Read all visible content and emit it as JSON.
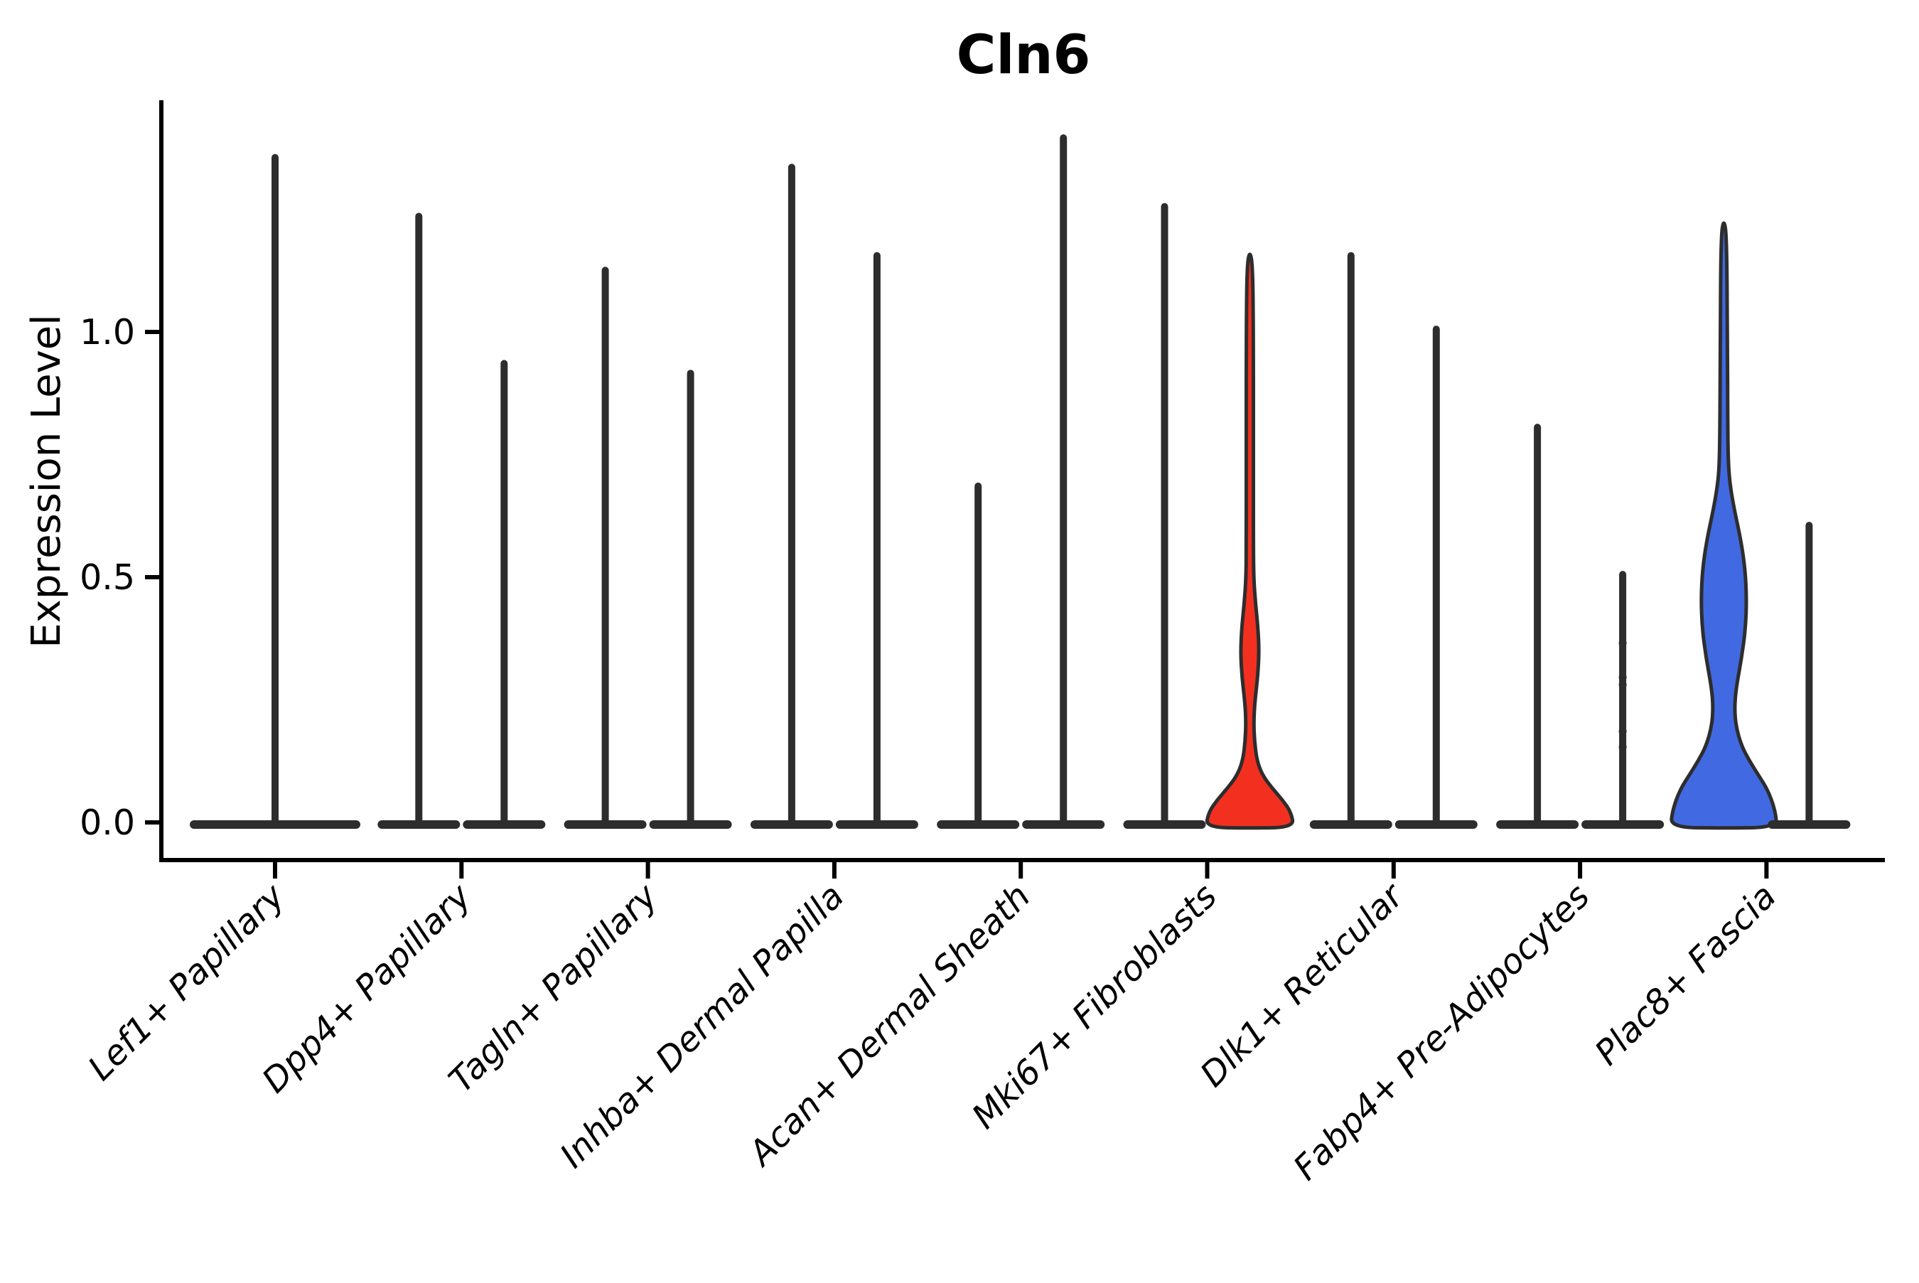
{
  "chart_data": {
    "type": "violin",
    "title": "Cln6",
    "ylabel": "Expression Level",
    "ytick_labels": [
      "0.0",
      "0.5",
      "1.0"
    ],
    "yticks": [
      0.0,
      0.5,
      1.0
    ],
    "ylim": [
      0,
      1.46
    ],
    "grid": false,
    "legend": "none",
    "ink_color": "#2d2d2d",
    "red_fill": "#f3301f",
    "blue_fill": "#4169e1",
    "categories": [
      "Lef1+ Papillary",
      "Dpp4+ Papillary",
      "Tagln+ Papillary",
      "Inhba+ Dermal Papilla",
      "Acan+ Dermal Sheath",
      "Mki67+ Fibroblasts",
      "Dlk1+ Reticular",
      "Fabp4+ Pre-Adipocytes",
      "Plac8+ Fascia"
    ],
    "groups": [
      {
        "category": "Lef1+ Papillary",
        "violins": [
          {
            "pos": "center",
            "max": 1.36,
            "style": "spike"
          }
        ]
      },
      {
        "category": "Dpp4+ Papillary",
        "violins": [
          {
            "pos": "left",
            "max": 1.24,
            "style": "spike"
          },
          {
            "pos": "right",
            "max": 0.94,
            "style": "spike"
          }
        ]
      },
      {
        "category": "Tagln+ Papillary",
        "violins": [
          {
            "pos": "left",
            "max": 1.13,
            "style": "spike"
          },
          {
            "pos": "right",
            "max": 0.92,
            "style": "spike"
          }
        ]
      },
      {
        "category": "Inhba+ Dermal Papilla",
        "violins": [
          {
            "pos": "left",
            "max": 1.34,
            "style": "spike"
          },
          {
            "pos": "right",
            "max": 1.16,
            "style": "spike"
          }
        ]
      },
      {
        "category": "Acan+ Dermal Sheath",
        "violins": [
          {
            "pos": "left",
            "max": 0.69,
            "style": "spike"
          },
          {
            "pos": "right",
            "max": 1.4,
            "style": "spike"
          }
        ]
      },
      {
        "category": "Mki67+ Fibroblasts",
        "violins": [
          {
            "pos": "left",
            "max": 1.26,
            "style": "spike"
          },
          {
            "pos": "right",
            "max": 1.17,
            "style": "body",
            "profile": "red",
            "fill": "#f3301f"
          }
        ]
      },
      {
        "category": "Dlk1+ Reticular",
        "violins": [
          {
            "pos": "left",
            "max": 1.16,
            "style": "spike"
          },
          {
            "pos": "right",
            "max": 1.01,
            "style": "spike"
          }
        ]
      },
      {
        "category": "Fabp4+ Pre-Adipocytes",
        "violins": [
          {
            "pos": "left",
            "max": 0.81,
            "style": "spike"
          },
          {
            "pos": "right",
            "max": 0.51,
            "style": "spike",
            "knots": [
              0.37,
              0.3,
              0.285,
              0.19,
              0.158
            ]
          }
        ]
      },
      {
        "category": "Plac8+ Fascia",
        "violins": [
          {
            "pos": "left",
            "max": 1.235,
            "style": "body",
            "profile": "blue",
            "fill": "#4169e1"
          },
          {
            "pos": "right",
            "max": 0.61,
            "style": "spike"
          }
        ]
      }
    ],
    "profiles": {
      "red": [
        [
          0,
          62
        ],
        [
          0.025,
          58
        ],
        [
          0.05,
          46
        ],
        [
          0.075,
          31
        ],
        [
          0.1,
          18
        ],
        [
          0.13,
          10
        ],
        [
          0.17,
          6.5
        ],
        [
          0.21,
          5.5
        ],
        [
          0.25,
          7
        ],
        [
          0.3,
          11
        ],
        [
          0.35,
          13
        ],
        [
          0.4,
          11.5
        ],
        [
          0.45,
          8
        ],
        [
          0.5,
          5.5
        ],
        [
          0.56,
          5
        ],
        [
          0.75,
          5
        ],
        [
          1.0,
          5
        ],
        [
          1.14,
          4
        ],
        [
          1.17,
          0
        ]
      ],
      "blue": [
        [
          0,
          75
        ],
        [
          0.03,
          72
        ],
        [
          0.07,
          62
        ],
        [
          0.1,
          49
        ],
        [
          0.13,
          36
        ],
        [
          0.16,
          25
        ],
        [
          0.2,
          17
        ],
        [
          0.24,
          15
        ],
        [
          0.28,
          17.5
        ],
        [
          0.34,
          25
        ],
        [
          0.4,
          30.5
        ],
        [
          0.46,
          32
        ],
        [
          0.52,
          30
        ],
        [
          0.58,
          24
        ],
        [
          0.64,
          15
        ],
        [
          0.69,
          9
        ],
        [
          0.73,
          6.5
        ],
        [
          0.8,
          5.5
        ],
        [
          1.0,
          5
        ],
        [
          1.2,
          4
        ],
        [
          1.235,
          0
        ]
      ]
    }
  }
}
